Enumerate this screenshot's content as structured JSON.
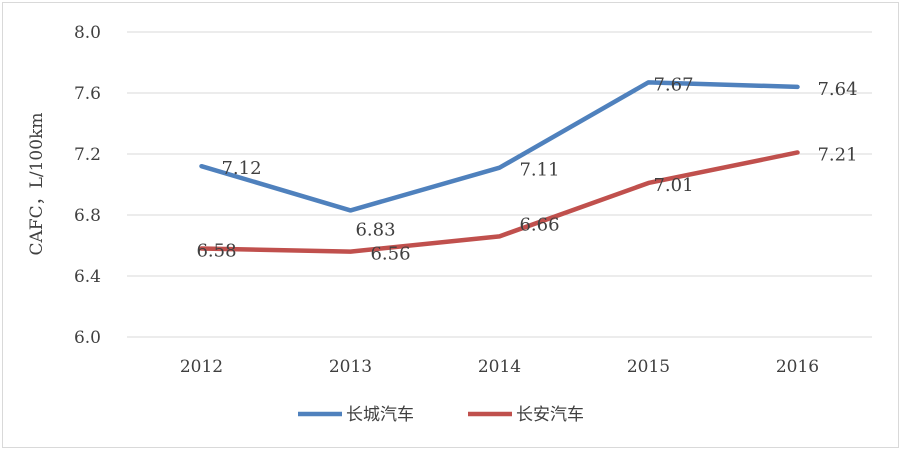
{
  "chart_data": {
    "type": "line",
    "title": "",
    "xlabel": "",
    "ylabel": "CAFC，L/100km",
    "ylim": [
      6.0,
      8.0
    ],
    "yticks": [
      "6.0",
      "6.4",
      "6.8",
      "7.2",
      "7.6",
      "8.0"
    ],
    "categories": [
      "2012",
      "2013",
      "2014",
      "2015",
      "2016"
    ],
    "grid": "horizontal",
    "legend_position": "bottom",
    "series": [
      {
        "name": "长城汽车",
        "color": "#4f81bd",
        "values": [
          7.12,
          6.83,
          7.11,
          7.67,
          7.64
        ],
        "labels": [
          "7.12",
          "6.83",
          "7.11",
          "7.67",
          "7.64"
        ]
      },
      {
        "name": "长安汽车",
        "color": "#c0504d",
        "values": [
          6.58,
          6.56,
          6.66,
          7.01,
          7.21
        ],
        "labels": [
          "6.58",
          "6.56",
          "6.66",
          "7.01",
          "7.21"
        ]
      }
    ]
  }
}
